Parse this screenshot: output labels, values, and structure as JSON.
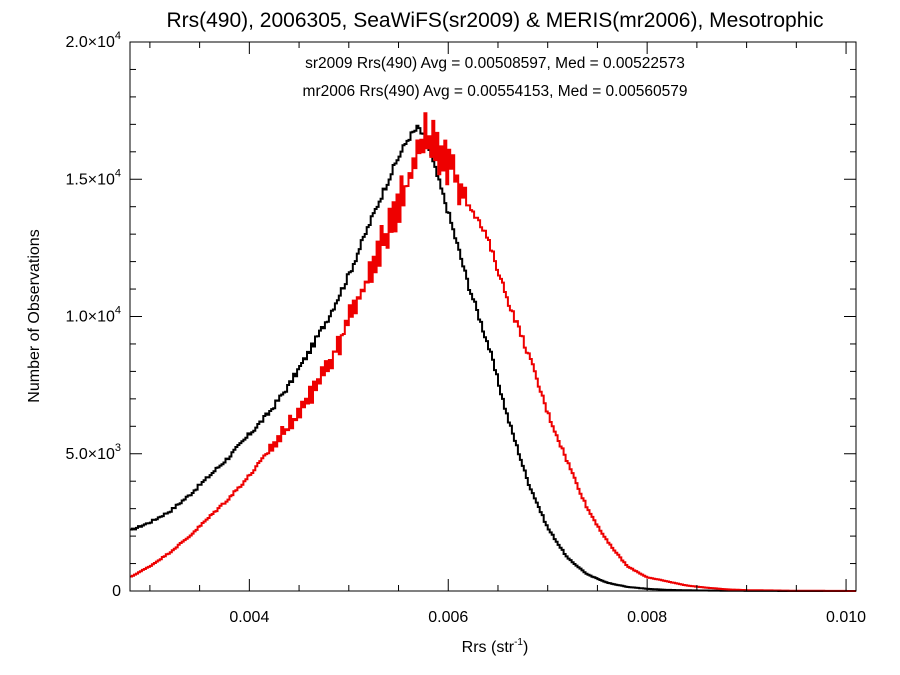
{
  "chart_data": {
    "type": "step-histogram",
    "title": "Rrs(490), 2006305, SeaWiFS(sr2009) & MERIS(mr2006), Mesotrophic",
    "xlabel": {
      "base": "Rrs (str",
      "sup": "-1",
      "close": ")"
    },
    "ylabel": "Number of Observations",
    "xlim": [
      0.0028,
      0.0101
    ],
    "ylim": [
      0,
      20000
    ],
    "x_ticks": [
      {
        "value": 0.004,
        "label": "0.004"
      },
      {
        "value": 0.006,
        "label": "0.006"
      },
      {
        "value": 0.008,
        "label": "0.008"
      },
      {
        "value": 0.01,
        "label": "0.010"
      }
    ],
    "y_ticks": [
      {
        "value": 0,
        "mantissa": "0",
        "exp": ""
      },
      {
        "value": 5000,
        "mantissa": "5.0×10",
        "exp": "3"
      },
      {
        "value": 10000,
        "mantissa": "1.0×10",
        "exp": "4"
      },
      {
        "value": 15000,
        "mantissa": "1.5×10",
        "exp": "4"
      },
      {
        "value": 20000,
        "mantissa": "2.0×10",
        "exp": "4"
      }
    ],
    "annotations": [
      {
        "text": "sr2009 Rrs(490) Avg = 0.00508597, Med = 0.00522573",
        "color": "#000000"
      },
      {
        "text": "mr2006 Rrs(490) Avg = 0.00554153, Med = 0.00560579",
        "color": "#ee0000"
      }
    ],
    "series": [
      {
        "name": "sr2009",
        "color": "#000000",
        "x": [
          0.0028,
          0.003,
          0.0032,
          0.0034,
          0.0036,
          0.0038,
          0.004,
          0.0042,
          0.0044,
          0.0046,
          0.0048,
          0.005,
          0.0052,
          0.0054,
          0.0055,
          0.0056,
          0.0057,
          0.0058,
          0.0059,
          0.006,
          0.0061,
          0.0062,
          0.0064,
          0.0066,
          0.0068,
          0.007,
          0.0072,
          0.0074,
          0.0076,
          0.0078,
          0.008,
          0.0082,
          0.0085,
          0.009,
          0.0095,
          0.0101
        ],
        "y": [
          2200,
          2500,
          2900,
          3500,
          4200,
          4900,
          5700,
          6500,
          7500,
          8700,
          10000,
          11500,
          13300,
          15000,
          15800,
          16500,
          16900,
          16200,
          15000,
          13800,
          12500,
          11200,
          9000,
          6300,
          4000,
          2300,
          1200,
          600,
          300,
          150,
          80,
          40,
          20,
          5,
          0,
          0
        ]
      },
      {
        "name": "mr2006",
        "color": "#ee0000",
        "x": [
          0.0028,
          0.003,
          0.0032,
          0.0034,
          0.0036,
          0.0038,
          0.004,
          0.0042,
          0.0044,
          0.0046,
          0.0048,
          0.005,
          0.0052,
          0.0054,
          0.0056,
          0.0057,
          0.0058,
          0.0059,
          0.006,
          0.0061,
          0.0062,
          0.0064,
          0.0066,
          0.0068,
          0.007,
          0.0072,
          0.0074,
          0.0076,
          0.0078,
          0.008,
          0.0082,
          0.0084,
          0.0086,
          0.0088,
          0.009,
          0.0095,
          0.0101
        ],
        "y": [
          500,
          900,
          1400,
          2000,
          2700,
          3400,
          4200,
          5100,
          6000,
          7000,
          8300,
          9800,
          11500,
          13200,
          15000,
          16200,
          16600,
          16000,
          15600,
          15000,
          14200,
          12800,
          10600,
          8700,
          6500,
          4700,
          3000,
          1800,
          900,
          500,
          350,
          200,
          120,
          60,
          30,
          10,
          0
        ]
      }
    ]
  }
}
